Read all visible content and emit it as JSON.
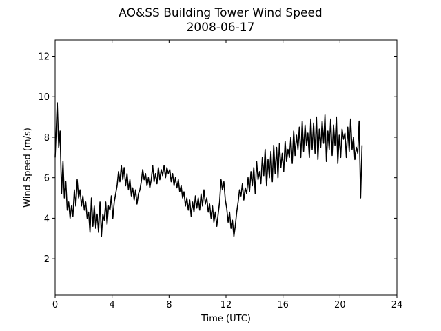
{
  "chart_data": {
    "type": "line",
    "title": "AO&SS Building Tower Wind Speed",
    "subtitle": "2008-06-17",
    "xlabel": "Time (UTC)",
    "ylabel": "Wind Speed (m/s)",
    "xlim": [
      0,
      24
    ],
    "ylim": [
      0.2,
      12.8
    ],
    "x_ticks": [
      0,
      4,
      8,
      12,
      16,
      20,
      24
    ],
    "y_ticks": [
      2,
      4,
      6,
      8,
      10,
      12
    ],
    "grid": false,
    "legend": "none",
    "line_color": "#000000",
    "series": [
      {
        "x": [
          0.0,
          0.15,
          0.25,
          0.35,
          0.45,
          0.55,
          0.65,
          0.75,
          0.85,
          0.95,
          1.05,
          1.15,
          1.25,
          1.35,
          1.45,
          1.55,
          1.65,
          1.75,
          1.85,
          1.95,
          2.05,
          2.15,
          2.25,
          2.35,
          2.45,
          2.55,
          2.65,
          2.75,
          2.85,
          2.95,
          3.05,
          3.15,
          3.25,
          3.35,
          3.45,
          3.55,
          3.65,
          3.75,
          3.85,
          3.95,
          4.05,
          4.15,
          4.25,
          4.35,
          4.45,
          4.55,
          4.65,
          4.75,
          4.85,
          4.95,
          5.05,
          5.15,
          5.25,
          5.35,
          5.45,
          5.55,
          5.65,
          5.75,
          5.85,
          5.95,
          6.05,
          6.15,
          6.25,
          6.35,
          6.45,
          6.55,
          6.65,
          6.75,
          6.85,
          6.95,
          7.05,
          7.15,
          7.25,
          7.35,
          7.45,
          7.55,
          7.65,
          7.75,
          7.85,
          7.95,
          8.05,
          8.15,
          8.25,
          8.35,
          8.45,
          8.55,
          8.65,
          8.75,
          8.85,
          8.95,
          9.05,
          9.15,
          9.25,
          9.35,
          9.45,
          9.55,
          9.65,
          9.75,
          9.85,
          9.95,
          10.05,
          10.15,
          10.25,
          10.35,
          10.45,
          10.55,
          10.65,
          10.75,
          10.85,
          10.95,
          11.05,
          11.15,
          11.25,
          11.35,
          11.45,
          11.55,
          11.65,
          11.75,
          11.85,
          11.95,
          12.05,
          12.15,
          12.25,
          12.35,
          12.45,
          12.55,
          12.65,
          12.75,
          12.85,
          12.95,
          13.05,
          13.15,
          13.25,
          13.35,
          13.45,
          13.55,
          13.65,
          13.75,
          13.85,
          13.95,
          14.05,
          14.15,
          14.25,
          14.35,
          14.45,
          14.55,
          14.65,
          14.75,
          14.85,
          14.95,
          15.05,
          15.15,
          15.25,
          15.35,
          15.45,
          15.55,
          15.65,
          15.75,
          15.85,
          15.95,
          16.05,
          16.15,
          16.25,
          16.35,
          16.45,
          16.55,
          16.65,
          16.75,
          16.85,
          16.95,
          17.05,
          17.15,
          17.25,
          17.35,
          17.45,
          17.55,
          17.65,
          17.75,
          17.85,
          17.95,
          18.05,
          18.15,
          18.25,
          18.35,
          18.45,
          18.55,
          18.65,
          18.75,
          18.85,
          18.95,
          19.05,
          19.15,
          19.25,
          19.35,
          19.45,
          19.55,
          19.65,
          19.75,
          19.85,
          19.95,
          20.05,
          20.15,
          20.25,
          20.35,
          20.45,
          20.55,
          20.65,
          20.75,
          20.85,
          20.95,
          21.05,
          21.15,
          21.25,
          21.35,
          21.45,
          21.55
        ],
        "values": [
          7.0,
          9.7,
          7.5,
          8.3,
          5.2,
          6.8,
          5.0,
          5.8,
          4.4,
          4.8,
          4.0,
          4.6,
          4.1,
          5.4,
          4.6,
          5.9,
          5.0,
          5.4,
          4.6,
          5.1,
          4.4,
          4.8,
          4.0,
          4.3,
          3.3,
          5.0,
          3.6,
          4.6,
          3.5,
          4.2,
          3.3,
          4.8,
          3.1,
          4.2,
          3.9,
          4.8,
          3.7,
          4.6,
          4.4,
          5.1,
          4.0,
          4.8,
          5.2,
          5.6,
          6.3,
          5.8,
          6.6,
          5.9,
          6.5,
          5.6,
          6.2,
          5.4,
          5.9,
          5.1,
          5.5,
          4.9,
          5.4,
          4.7,
          5.2,
          5.4,
          5.8,
          6.4,
          5.9,
          6.2,
          5.6,
          6.0,
          5.5,
          5.9,
          6.6,
          5.8,
          6.2,
          5.7,
          6.5,
          5.9,
          6.4,
          6.1,
          6.6,
          6.0,
          6.5,
          6.2,
          6.4,
          5.8,
          6.2,
          5.6,
          6.0,
          5.5,
          5.9,
          5.3,
          5.6,
          5.0,
          5.3,
          4.6,
          5.0,
          4.4,
          4.9,
          4.1,
          4.8,
          4.3,
          5.1,
          4.5,
          5.0,
          4.4,
          5.2,
          4.6,
          5.4,
          4.7,
          5.0,
          4.3,
          4.7,
          4.0,
          4.6,
          3.8,
          4.3,
          3.6,
          4.2,
          4.8,
          5.9,
          5.4,
          5.8,
          4.9,
          4.5,
          3.8,
          4.3,
          3.5,
          3.9,
          3.1,
          3.6,
          4.3,
          4.8,
          5.4,
          5.1,
          5.7,
          4.9,
          5.5,
          5.2,
          6.0,
          5.3,
          6.3,
          5.6,
          6.5,
          5.2,
          6.8,
          5.9,
          6.3,
          5.7,
          7.0,
          6.1,
          7.4,
          5.6,
          6.9,
          6.0,
          7.3,
          5.8,
          7.6,
          6.2,
          7.5,
          6.0,
          7.7,
          6.5,
          7.2,
          6.3,
          7.8,
          6.8,
          7.4,
          7.0,
          8.0,
          6.7,
          8.3,
          7.1,
          8.1,
          7.4,
          8.5,
          7.0,
          8.8,
          7.3,
          8.6,
          7.6,
          8.2,
          7.0,
          8.9,
          7.4,
          8.7,
          7.2,
          9.0,
          6.9,
          8.4,
          7.5,
          8.8,
          7.7,
          9.1,
          6.8,
          8.3,
          7.4,
          8.9,
          7.1,
          8.6,
          7.6,
          9.0,
          6.7,
          8.1,
          7.0,
          8.4,
          7.9,
          8.2,
          7.0,
          8.5,
          7.3,
          8.9,
          7.4,
          8.0,
          6.9,
          7.5,
          7.2,
          8.8,
          5.0,
          7.6
        ]
      }
    ]
  }
}
